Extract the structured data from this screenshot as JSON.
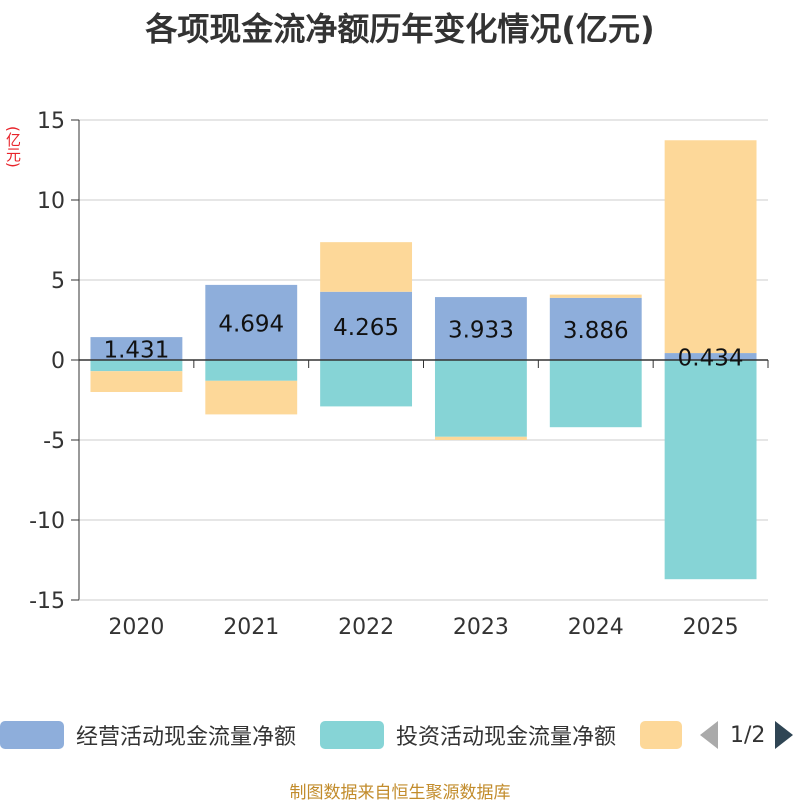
{
  "chart_data": {
    "type": "bar",
    "stacked": true,
    "title": "各项现金流净额历年变化情况(亿元)",
    "ylabel": "(亿元)",
    "categories": [
      "2020",
      "2021",
      "2022",
      "2023",
      "2024",
      "2025"
    ],
    "ylim": [
      -15,
      15
    ],
    "yticks": [
      15,
      10,
      5,
      0,
      -5,
      -10,
      -15
    ],
    "grid": true,
    "series": [
      {
        "name": "经营活动现金流量净额",
        "color": "#8eaedb",
        "values": [
          1.431,
          4.694,
          4.265,
          3.933,
          3.886,
          0.434
        ],
        "labels": [
          "1.431",
          "4.694",
          "4.265",
          "3.933",
          "3.886",
          "0.434"
        ]
      },
      {
        "name": "投资活动现金流量净额",
        "color": "#86d4d6",
        "values": [
          -0.7,
          -1.3,
          -2.9,
          -4.8,
          -4.2,
          -13.7
        ]
      },
      {
        "name": "",
        "color": "#fdd899",
        "values": [
          -1.3,
          -2.1,
          3.1,
          -0.2,
          0.2,
          13.3
        ]
      }
    ],
    "legend_position": "bottom"
  },
  "pager": {
    "text": "1/2"
  },
  "source": "制图数据来自恒生聚源数据库"
}
